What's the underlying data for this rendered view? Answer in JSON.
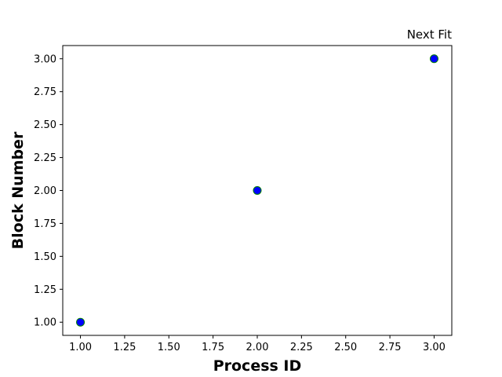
{
  "chart_data": {
    "type": "scatter",
    "title": "Next Fit",
    "title_loc": "right",
    "xlabel": "Process ID",
    "ylabel": "Block Number",
    "xlim": [
      0.9,
      3.1
    ],
    "ylim": [
      0.9,
      3.1
    ],
    "x_ticks": [
      1.0,
      1.25,
      1.5,
      1.75,
      2.0,
      2.25,
      2.5,
      2.75,
      3.0
    ],
    "x_tick_labels": [
      "1.00",
      "1.25",
      "1.50",
      "1.75",
      "2.00",
      "2.25",
      "2.50",
      "2.75",
      "3.00"
    ],
    "y_ticks": [
      1.0,
      1.25,
      1.5,
      1.75,
      2.0,
      2.25,
      2.5,
      2.75,
      3.0
    ],
    "y_tick_labels": [
      "1.00",
      "1.25",
      "1.50",
      "1.75",
      "2.00",
      "2.25",
      "2.50",
      "2.75",
      "3.00"
    ],
    "grid": false,
    "series": [
      {
        "x": [
          1,
          2,
          3
        ],
        "y": [
          1,
          2,
          3
        ],
        "marker_face_color": "#0000ff",
        "marker_edge_color": "#008000"
      }
    ]
  }
}
